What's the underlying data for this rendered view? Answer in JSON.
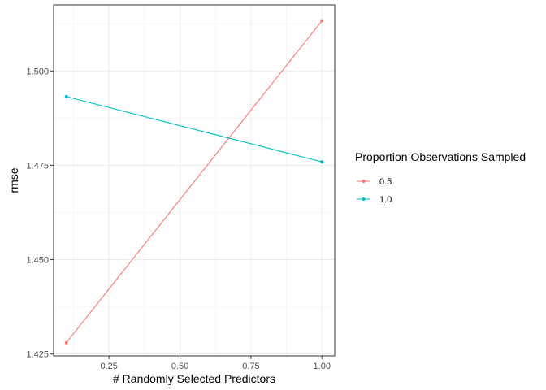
{
  "chart_data": {
    "type": "line",
    "xlabel": "# Randomly Selected Predictors",
    "ylabel": "rmse",
    "xlim": [
      0.055,
      1.045
    ],
    "ylim": [
      1.4245,
      1.5175
    ],
    "x_ticks": [
      0.25,
      0.5,
      0.75,
      1.0
    ],
    "x_tick_labels": [
      "0.25",
      "0.50",
      "0.75",
      "1.00"
    ],
    "y_ticks": [
      1.425,
      1.45,
      1.475,
      1.5
    ],
    "y_tick_labels": [
      "1.425",
      "1.450",
      "1.475",
      "1.500"
    ],
    "grid": true,
    "legend": {
      "title": "Proportion Observations Sampled",
      "position": "right"
    },
    "series": [
      {
        "name": "0.5",
        "color": "#F8766D",
        "x": [
          0.1,
          1.0
        ],
        "y": [
          1.428,
          1.5133
        ]
      },
      {
        "name": "1.0",
        "color": "#00BFC4",
        "x": [
          0.1,
          1.0
        ],
        "y": [
          1.4932,
          1.4759
        ]
      }
    ]
  }
}
